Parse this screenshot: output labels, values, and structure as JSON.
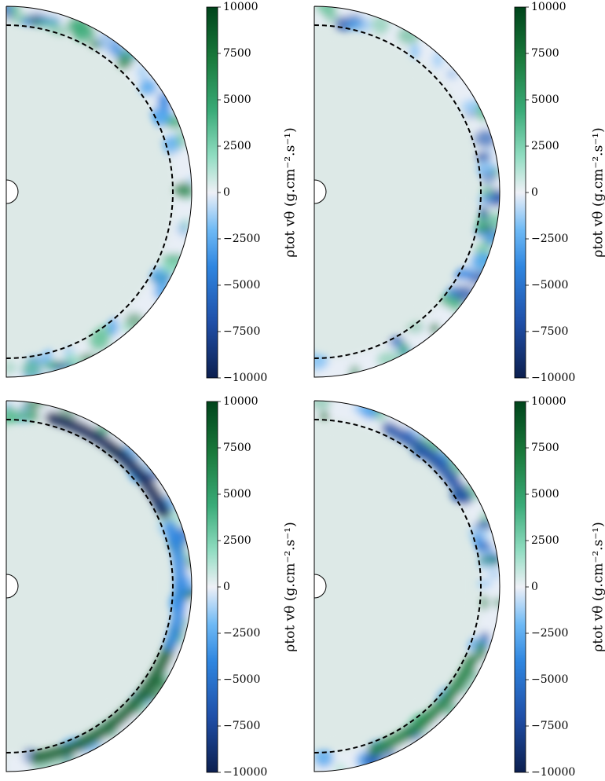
{
  "chart_data": [
    {
      "type": "heatmap",
      "colorbar_label": "ρtot vθ (g.cm⁻².s⁻¹)",
      "clim": [
        -10000,
        10000
      ],
      "cticks": [
        10000,
        7500,
        5000,
        2500,
        0,
        {
          "value": -2500,
          "label": "−2500"
        },
        {
          "value": -5000,
          "label": "−5000"
        },
        {
          "value": -7500,
          "label": "−7500"
        },
        {
          "value": -10000,
          "label": "−10000"
        }
      ]
    },
    {
      "type": "heatmap",
      "colorbar_label": "ρtot vθ (g.cm⁻².s⁻¹)",
      "clim": [
        -10000,
        10000
      ],
      "cticks": [
        10000,
        7500,
        5000,
        2500,
        0,
        {
          "value": -2500,
          "label": "−2500"
        },
        {
          "value": -5000,
          "label": "−5000"
        },
        {
          "value": -7500,
          "label": "−7500"
        },
        {
          "value": -10000,
          "label": "−10000"
        }
      ]
    },
    {
      "type": "heatmap",
      "colorbar_label": "ρtot vθ (g.cm⁻².s⁻¹)",
      "clim": [
        -10000,
        10000
      ],
      "cticks": [
        10000,
        7500,
        5000,
        2500,
        0,
        {
          "value": -2500,
          "label": "−2500"
        },
        {
          "value": -5000,
          "label": "−5000"
        },
        {
          "value": -7500,
          "label": "−7500"
        },
        {
          "value": -10000,
          "label": "−10000"
        }
      ]
    },
    {
      "type": "heatmap",
      "colorbar_label": "ρtot vθ (g.cm⁻².s⁻¹)",
      "clim": [
        -10000,
        10000
      ],
      "cticks": [
        10000,
        7500,
        5000,
        2500,
        0,
        {
          "value": -2500,
          "label": "−2500"
        },
        {
          "value": -5000,
          "label": "−5000"
        },
        {
          "value": -7500,
          "label": "−7500"
        },
        {
          "value": -10000,
          "label": "−10000"
        }
      ]
    }
  ]
}
